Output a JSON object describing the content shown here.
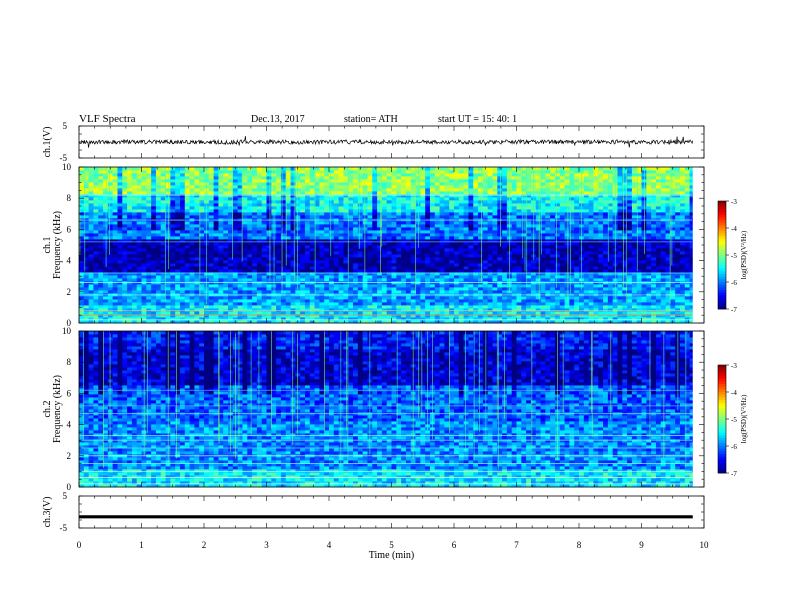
{
  "header": {
    "title": "VLF  Spectra",
    "date": "Dec.13, 2017",
    "station": "station= ATH",
    "start_ut": "start  UT  =    15: 40: 1"
  },
  "chart_data": {
    "type": "heatmap",
    "xlabel": "Time  (min)",
    "xlim": [
      0,
      10
    ],
    "xticks": [
      "0",
      "1",
      "2",
      "3",
      "4",
      "5",
      "6",
      "7",
      "8",
      "9",
      "10"
    ],
    "panels": [
      {
        "id": "ch1_waveform",
        "type": "line",
        "ylabel": "ch.1(V)",
        "ylim": [
          -5,
          5
        ],
        "yticks": [
          "5",
          "-5"
        ],
        "baseline_value": 0,
        "color": "#000000"
      },
      {
        "id": "ch1_spectrogram",
        "type": "heatmap",
        "channel_label": "ch.1",
        "ylabel": "Frequency  (kHz)",
        "ylim": [
          0,
          10
        ],
        "yticks": [
          "0",
          "2",
          "4",
          "6",
          "8",
          "10"
        ],
        "colorbar": {
          "label": "log(PSD)(V²/Hz)",
          "range": [
            -7,
            -3
          ],
          "ticks": [
            "-3",
            "-4",
            "-5",
            "-6",
            "-7"
          ]
        }
      },
      {
        "id": "ch2_spectrogram",
        "type": "heatmap",
        "channel_label": "ch.2",
        "ylabel": "Frequency  (kHz)",
        "ylim": [
          0,
          10
        ],
        "yticks": [
          "0",
          "2",
          "4",
          "6",
          "8",
          "10"
        ],
        "colorbar": {
          "label": "log(PSD)(V²/Hz)",
          "range": [
            -7,
            -3
          ],
          "ticks": [
            "-3",
            "-4",
            "-5",
            "-6",
            "-7"
          ]
        }
      },
      {
        "id": "ch3_waveform",
        "type": "line",
        "ylabel": "ch.3(V)",
        "ylim": [
          -5,
          5
        ],
        "yticks": [
          "5",
          "-5"
        ],
        "baseline_value": -1.5,
        "color": "#000000"
      }
    ]
  }
}
